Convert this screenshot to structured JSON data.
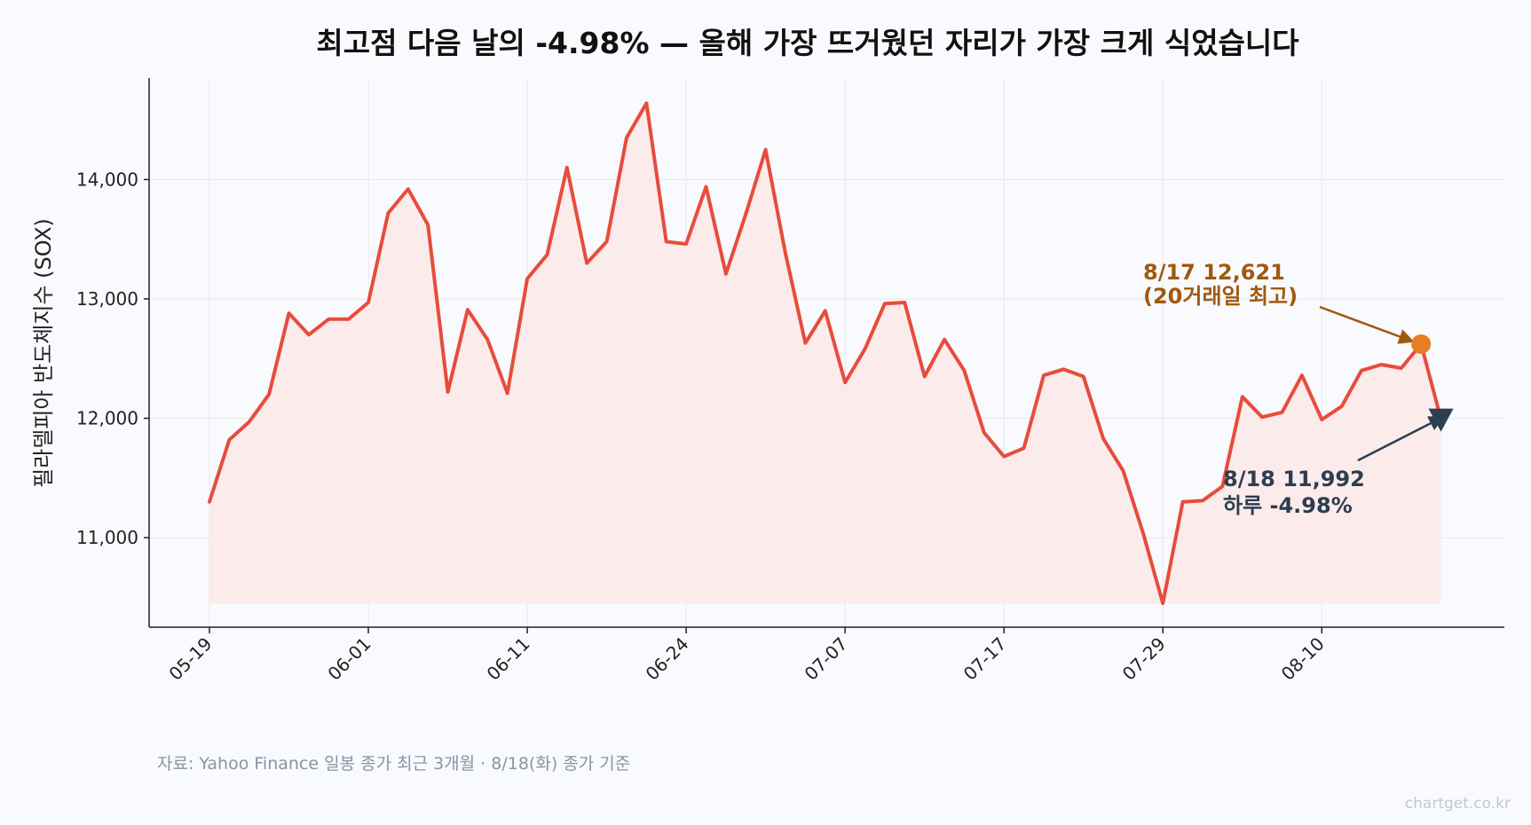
{
  "chart_data": {
    "type": "line",
    "title": "최고점 다음 날의 -4.98% — 올해 가장 뜨거웠던 자리가 가장 크게 식었습니다",
    "ylabel": "필라델피아 반도체지수 (SOX)",
    "xlabel": "",
    "ylim": [
      10250,
      14850
    ],
    "yticks": [
      11000,
      12000,
      13000,
      14000
    ],
    "ytick_labels": [
      "11,000",
      "12,000",
      "13,000",
      "14,000"
    ],
    "xtick_labels": [
      "05-19",
      "06-01",
      "06-11",
      "06-24",
      "07-07",
      "07-17",
      "07-29",
      "08-10"
    ],
    "xtick_index": [
      0,
      8,
      16,
      24,
      32,
      40,
      48,
      56
    ],
    "grid": true,
    "fill_area": true,
    "line_color": "#e74c3c",
    "fill_color": "#fce8e8",
    "series": [
      {
        "values": [
          11300,
          11820,
          11970,
          12200,
          12880,
          12700,
          12830,
          12830,
          12970,
          13720,
          13920,
          13620,
          12220,
          12910,
          12660,
          12210,
          13170,
          13370,
          14100,
          13300,
          13480,
          14350,
          14640,
          13480,
          13460,
          13940,
          13210,
          13710,
          14250,
          13380,
          12630,
          12900,
          12300,
          12580,
          12960,
          12970,
          12350,
          12660,
          12400,
          11880,
          11680,
          11750,
          12360,
          12410,
          12350,
          11830,
          11560,
          11040,
          10450,
          11300,
          11310,
          11430,
          12180,
          12010,
          12050,
          12360,
          11990,
          12100,
          12400,
          12450,
          12420,
          12621,
          11992
        ]
      }
    ],
    "annotations": [
      {
        "line1": "8/17 12,621",
        "line2": "(20거래일 최고)",
        "color": "#a0590e",
        "marker_color": "#e67e22",
        "marker": "circle",
        "index": 61,
        "value": 12621
      },
      {
        "line1": "8/18 11,992",
        "line2": "하루 -4.98%",
        "color": "#2c3e50",
        "marker_color": "#2c3e50",
        "marker": "triangle-down",
        "index": 62,
        "value": 11992
      }
    ]
  },
  "footer": {
    "source": "자료: Yahoo Finance 일봉 종가 최근 3개월 · 8/18(화) 종가 기준",
    "watermark": "chartget.co.kr"
  }
}
